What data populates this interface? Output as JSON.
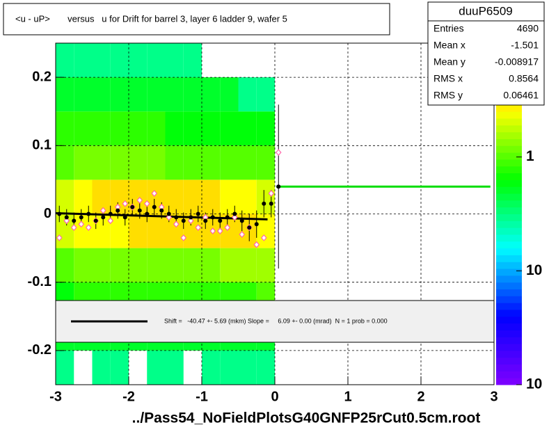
{
  "chart_data": {
    "type": "heatmap-profile",
    "title": "<u - uP>       versus   u for Drift for barrel 3, layer 6 ladder 9, wafer 5",
    "x_axis_label": "../Pass54_NoFieldPlotsG40GNFP25rCut0.5cm.root",
    "xlim": [
      -3,
      3
    ],
    "ylim": [
      -0.25,
      0.25
    ],
    "xticks": [
      -3,
      -2,
      -1,
      0,
      1,
      2,
      3
    ],
    "yticks": [
      -0.2,
      -0.1,
      0,
      0.1,
      0.2
    ],
    "grid": true,
    "zlim": [
      0.01,
      10
    ],
    "log_z": true,
    "zticks": [
      {
        "value": 10,
        "label": "10"
      },
      1,
      {
        "value": 0.1,
        "label": "10"
      },
      {
        "value": 0.01,
        "label": "10"
      }
    ],
    "xbins": [
      -3,
      -2.75,
      -2.5,
      -2.25,
      -2,
      -1.75,
      -1.5,
      -1.25,
      -1,
      -0.75,
      -0.5,
      -0.25,
      0
    ],
    "ybins": [
      -0.25,
      -0.2,
      -0.15,
      -0.1,
      -0.05,
      0,
      0.05,
      0.1,
      0.15,
      0.2,
      0.25
    ],
    "counts": [
      [
        0.3,
        0,
        0.3,
        0.3,
        0,
        0.3,
        0.3,
        0,
        0.3,
        0.3,
        0.3,
        0.3
      ],
      [
        0.5,
        0.5,
        0.5,
        0.5,
        0.5,
        0.5,
        0.5,
        0.5,
        0.5,
        0.5,
        0.5,
        0.5
      ],
      [
        0.6,
        0.8,
        0.8,
        0.8,
        0.8,
        0.8,
        0.8,
        0.8,
        0.8,
        0.8,
        0.8,
        1
      ],
      [
        1,
        1.2,
        1.2,
        1.2,
        1.2,
        1.2,
        1.2,
        1.2,
        1.2,
        1.5,
        1.5,
        1.5
      ],
      [
        2,
        2.5,
        2.5,
        2.5,
        3,
        3,
        3,
        3,
        3,
        3,
        3,
        2.5
      ],
      [
        2,
        2.5,
        3,
        3,
        3,
        3,
        3,
        3,
        3,
        2.5,
        2.5,
        2
      ],
      [
        1,
        1.2,
        1.2,
        1.2,
        1.2,
        1.2,
        1,
        1,
        1,
        1,
        1,
        1
      ],
      [
        0.8,
        0.8,
        0.8,
        0.8,
        0.8,
        0.8,
        0.6,
        0.6,
        0.6,
        0.6,
        0.6,
        0.6
      ],
      [
        0.5,
        0.5,
        0.5,
        0.5,
        0.5,
        0.5,
        0.5,
        0.5,
        0.5,
        0.5,
        0.3,
        0.3
      ],
      [
        0.3,
        0.3,
        0.3,
        0.3,
        0.3,
        0.3,
        0.3,
        0.3,
        0,
        0,
        0,
        0
      ]
    ],
    "profile": {
      "color": "#000000",
      "x": [
        -2.95,
        -2.85,
        -2.75,
        -2.65,
        -2.55,
        -2.45,
        -2.35,
        -2.25,
        -2.15,
        -2.05,
        -1.95,
        -1.85,
        -1.75,
        -1.65,
        -1.55,
        -1.45,
        -1.35,
        -1.25,
        -1.15,
        -1.05,
        -0.95,
        -0.85,
        -0.75,
        -0.65,
        -0.55,
        -0.45,
        -0.35,
        -0.25,
        -0.15,
        -0.05,
        0.05
      ],
      "values": [
        0,
        -0.005,
        -0.01,
        -0.005,
        0,
        -0.01,
        -0.005,
        0,
        0.005,
        -0.005,
        0.01,
        0.005,
        0,
        0.01,
        0.005,
        0,
        -0.005,
        -0.01,
        -0.005,
        0,
        -0.01,
        -0.005,
        -0.01,
        -0.005,
        0,
        -0.01,
        -0.02,
        -0.015,
        0.015,
        0.015,
        0.04
      ],
      "errors": [
        0.012,
        0.012,
        0.012,
        0.012,
        0.012,
        0.012,
        0.012,
        0.012,
        0.012,
        0.012,
        0.012,
        0.012,
        0.012,
        0.012,
        0.012,
        0.012,
        0.012,
        0.012,
        0.012,
        0.012,
        0.012,
        0.012,
        0.012,
        0.012,
        0.012,
        0.015,
        0.02,
        0.02,
        0.02,
        0.02,
        0.12
      ]
    },
    "points": {
      "color": "#ff66aa",
      "x": [
        -2.95,
        -2.85,
        -2.75,
        -2.65,
        -2.55,
        -2.45,
        -2.35,
        -2.25,
        -2.15,
        -2.05,
        -1.95,
        -1.85,
        -1.75,
        -1.65,
        -1.55,
        -1.45,
        -1.35,
        -1.25,
        -1.15,
        -1.05,
        -0.95,
        -0.85,
        -0.75,
        -0.65,
        -0.55,
        -0.45,
        -0.35,
        -0.25,
        -0.15,
        -0.05,
        0.05
      ],
      "values": [
        -0.035,
        -0.01,
        -0.02,
        -0.015,
        -0.02,
        -0.01,
        0.005,
        -0.01,
        0.01,
        0.015,
        0.01,
        0.02,
        0.015,
        0.03,
        0.01,
        -0.005,
        -0.015,
        -0.035,
        -0.01,
        -0.02,
        -0.005,
        -0.025,
        -0.025,
        -0.02,
        -0.005,
        -0.03,
        -0.02,
        -0.045,
        -0.035,
        0.03,
        0.09
      ]
    },
    "fit_line": {
      "color": "#000000",
      "x": [
        -3,
        -0.1
      ],
      "values": [
        0.001,
        -0.008
      ]
    },
    "mean_line": {
      "color": "#00dd00",
      "x": [
        0.02,
        2.95
      ],
      "values": [
        0.04,
        0.04
      ]
    },
    "fit_text": "Shift =   -40.47 +- 5.69 (mkm) Slope =     6.09 +- 0.00 (mrad)  N = 1 prob = 0.000",
    "stats": {
      "name": "duuP6509",
      "rows": [
        [
          "Entries",
          4690
        ],
        [
          "Mean x",
          -1.501
        ],
        [
          "Mean y",
          -0.008917
        ],
        [
          "RMS x",
          0.8564
        ],
        [
          "RMS y",
          0.06461
        ]
      ]
    }
  }
}
